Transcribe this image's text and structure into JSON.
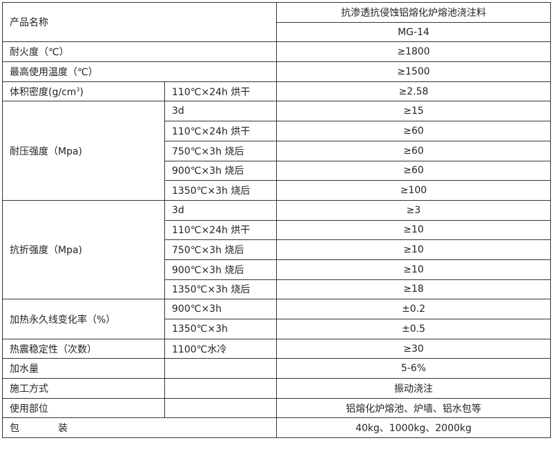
{
  "product_name_label": "产品名称",
  "product_name": "抗渗透抗侵蚀铝熔化炉熔池浇注料",
  "model": "MG-14",
  "rows": {
    "refractoriness": {
      "label": "耐火度（℃）",
      "value": "≥1800"
    },
    "max_temp": {
      "label": "最高使用温度（℃）",
      "value": "≥1500"
    },
    "density": {
      "label": "体积密度(g/cm",
      "label_sup": "3",
      "label_end": ")",
      "condition": "110℃×24h 烘干",
      "value": "≥2.58"
    },
    "compressive": {
      "label": "耐压强度（Mpa)",
      "items": [
        {
          "condition": "3d",
          "value": "≥15"
        },
        {
          "condition": "110℃×24h 烘干",
          "value": "≥60"
        },
        {
          "condition": "750℃×3h 烧后",
          "value": "≥60"
        },
        {
          "condition": "900℃×3h 烧后",
          "value": "≥60"
        },
        {
          "condition": "1350℃×3h 烧后",
          "value": "≥100"
        }
      ]
    },
    "flexural": {
      "label": "抗折强度（Mpa)",
      "items": [
        {
          "condition": "3d",
          "value": "≥3"
        },
        {
          "condition": "110℃×24h 烘干",
          "value": "≥10"
        },
        {
          "condition": "750℃×3h 烧后",
          "value": "≥10"
        },
        {
          "condition": "900℃×3h 烧后",
          "value": "≥10"
        },
        {
          "condition": "1350℃×3h 烧后",
          "value": "≥18"
        }
      ]
    },
    "linear_change": {
      "label": "加热永久线变化率（%）",
      "items": [
        {
          "condition": "900℃×3h",
          "value": "±0.2"
        },
        {
          "condition": "1350℃×3h",
          "value": "±0.5"
        }
      ]
    },
    "thermal_shock": {
      "label": "热震稳定性（次数）",
      "condition": "1100℃水冷",
      "value": "≥30"
    },
    "water": {
      "label": "加水量",
      "value": "5-6%"
    },
    "construction": {
      "label": "施工方式",
      "value": "振动浇注"
    },
    "usage": {
      "label": "使用部位",
      "value": "铝熔化炉熔池、炉墙、铝水包等"
    },
    "packaging": {
      "label": "包　　　　装",
      "value": "40kg、1000kg、2000kg"
    }
  }
}
